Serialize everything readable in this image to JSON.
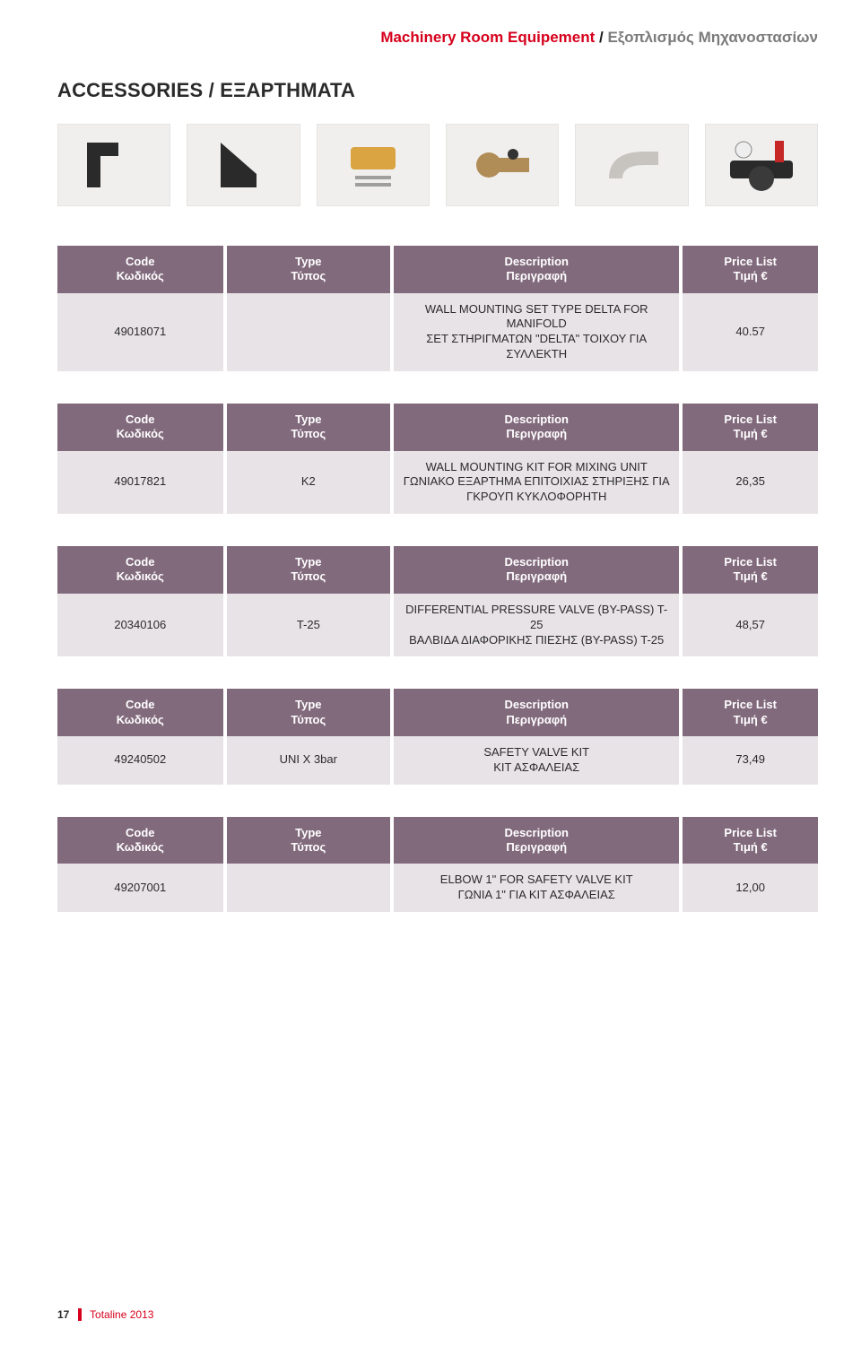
{
  "header": {
    "title_en": "Machinery Room Equipement",
    "separator": " / ",
    "title_gr": "Εξοπλισμός Μηχανοστασίων"
  },
  "section_title": "ACCESSORIES / ΕΞΑΡΤΗΜΑΤΑ",
  "columns": {
    "code": {
      "en": "Code",
      "gr": "Κωδικός"
    },
    "type": {
      "en": "Type",
      "gr": "Τύπος"
    },
    "desc": {
      "en": "Description",
      "gr": "Περιγραφή"
    },
    "price": {
      "en": "Price List",
      "gr": "Τιμή €"
    }
  },
  "colors": {
    "header_bg": "#826a7d",
    "row_bg": "#e8e3e7",
    "header_text": "#ffffff",
    "row_text": "#2b2b2b",
    "accent_red": "#d6001c",
    "grey_text": "#7b7b7b",
    "page_bg": "#ffffff"
  },
  "tables": [
    {
      "code": "49018071",
      "type": "",
      "desc_en": "WALL MOUNTING SET TYPE DELTA FOR MANIFOLD",
      "desc_gr": "ΣΕΤ ΣΤΗΡΙΓΜΑΤΩΝ \"DELTA\" ΤΟΙΧΟΥ ΓΙΑ ΣΥΛΛΕΚΤΗ",
      "price": "40.57"
    },
    {
      "code": "49017821",
      "type": "K2",
      "desc_en": "WALL MOUNTING KIT FOR MIXING UNIT",
      "desc_gr": "ΓΩΝΙΑΚΟ ΕΞΑΡΤΗΜΑ ΕΠΙΤΟΙΧΙΑΣ ΣΤΗΡΙΞΗΣ ΓΙΑ ΓΚΡΟΥΠ ΚΥΚΛΟΦΟΡΗΤΗ",
      "price": "26,35"
    },
    {
      "code": "20340106",
      "type": "T-25",
      "desc_en": "DIFFERENTIAL PRESSURE VALVE (BY-PASS) T-25",
      "desc_gr": "ΒΑΛΒΙΔΑ ΔΙΑΦΟΡΙΚΗΣ ΠΙΕΣΗΣ (BY-PASS) T-25",
      "price": "48,57"
    },
    {
      "code": "49240502",
      "type": "UNI X 3bar",
      "desc_en": "SAFETY VALVE KIT",
      "desc_gr": "ΚΙΤ ΑΣΦΑΛΕΙΑΣ",
      "price": "73,49"
    },
    {
      "code": "49207001",
      "type": "",
      "desc_en": "ELBOW 1\" FOR SAFETY VALVE KIT",
      "desc_gr": "ΓΩΝΙΑ 1\" ΓΙΑ ΚΙΤ ΑΣΦΑΛΕΙΑΣ",
      "price": "12,00"
    }
  ],
  "images": [
    {
      "name": "bracket-left-icon",
      "alt": "bracket"
    },
    {
      "name": "bracket-right-icon",
      "alt": "bracket"
    },
    {
      "name": "wall-kit-icon",
      "alt": "wall kit"
    },
    {
      "name": "valve-icon",
      "alt": "valve"
    },
    {
      "name": "elbow-icon",
      "alt": "elbow"
    },
    {
      "name": "safety-kit-icon",
      "alt": "safety kit"
    }
  ],
  "footer": {
    "page": "17",
    "brand": "Totaline 2013"
  }
}
